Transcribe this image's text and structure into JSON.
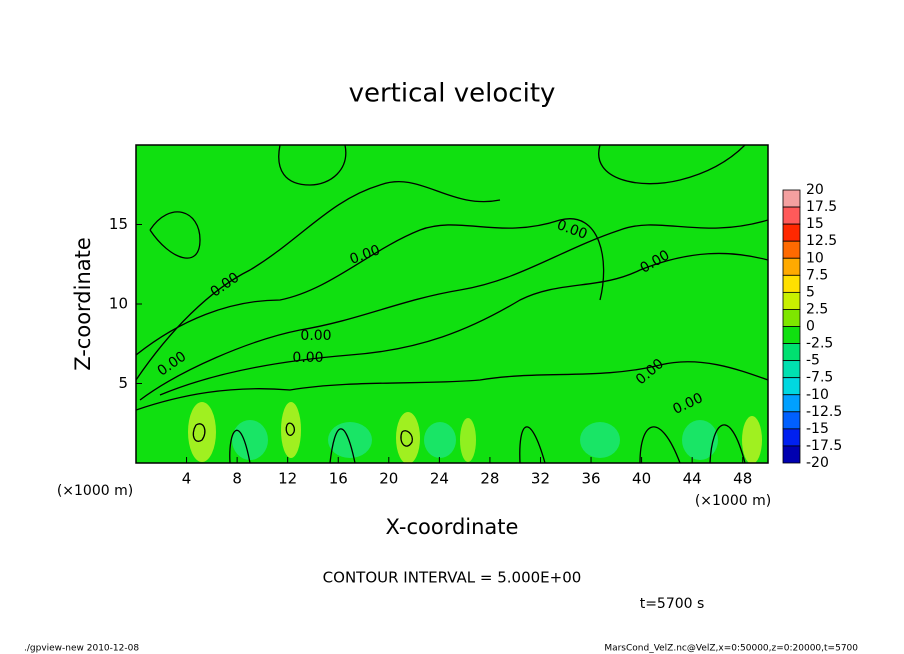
{
  "chart_data": {
    "type": "contour",
    "title": "vertical velocity",
    "xlabel": "X-coordinate",
    "ylabel": "Z-coordinate",
    "x_unit_label": "(×1000 m)",
    "xlim": [
      0,
      50
    ],
    "ylim": [
      0,
      20
    ],
    "xticks": [
      4,
      8,
      12,
      16,
      20,
      24,
      28,
      32,
      36,
      40,
      44,
      48
    ],
    "yticks": [
      5,
      10,
      15
    ],
    "background_color": "#10e010",
    "contour_interval_label": "CONTOUR INTERVAL = 5.000E+00",
    "contour_labels": [
      "0.00",
      "0.00",
      "0.00",
      "0.00",
      "0.00",
      "0.00",
      "0.00",
      "0.00",
      "0.00"
    ],
    "colorbar": {
      "levels": [
        20,
        17.5,
        15,
        12.5,
        10,
        7.5,
        5,
        2.5,
        0,
        -2.5,
        -5,
        -7.5,
        -10,
        -12.5,
        -15,
        -17.5,
        -20
      ],
      "colors": [
        "#f4a0a0",
        "#ff5a5a",
        "#ff2800",
        "#ff6a00",
        "#ffaa00",
        "#ffe000",
        "#c8f000",
        "#7ee600",
        "#10e010",
        "#00e070",
        "#00e0b0",
        "#00d8e0",
        "#00a0ff",
        "#0060ff",
        "#0020f0",
        "#0000b0",
        "#6414a0"
      ]
    }
  },
  "annotations": {
    "time": "t=5700 s",
    "footer_left": "./gpview-new  2010-12-08",
    "footer_right": "MarsCond_VelZ.nc@VelZ,x=0:50000,z=0:20000,t=5700"
  }
}
